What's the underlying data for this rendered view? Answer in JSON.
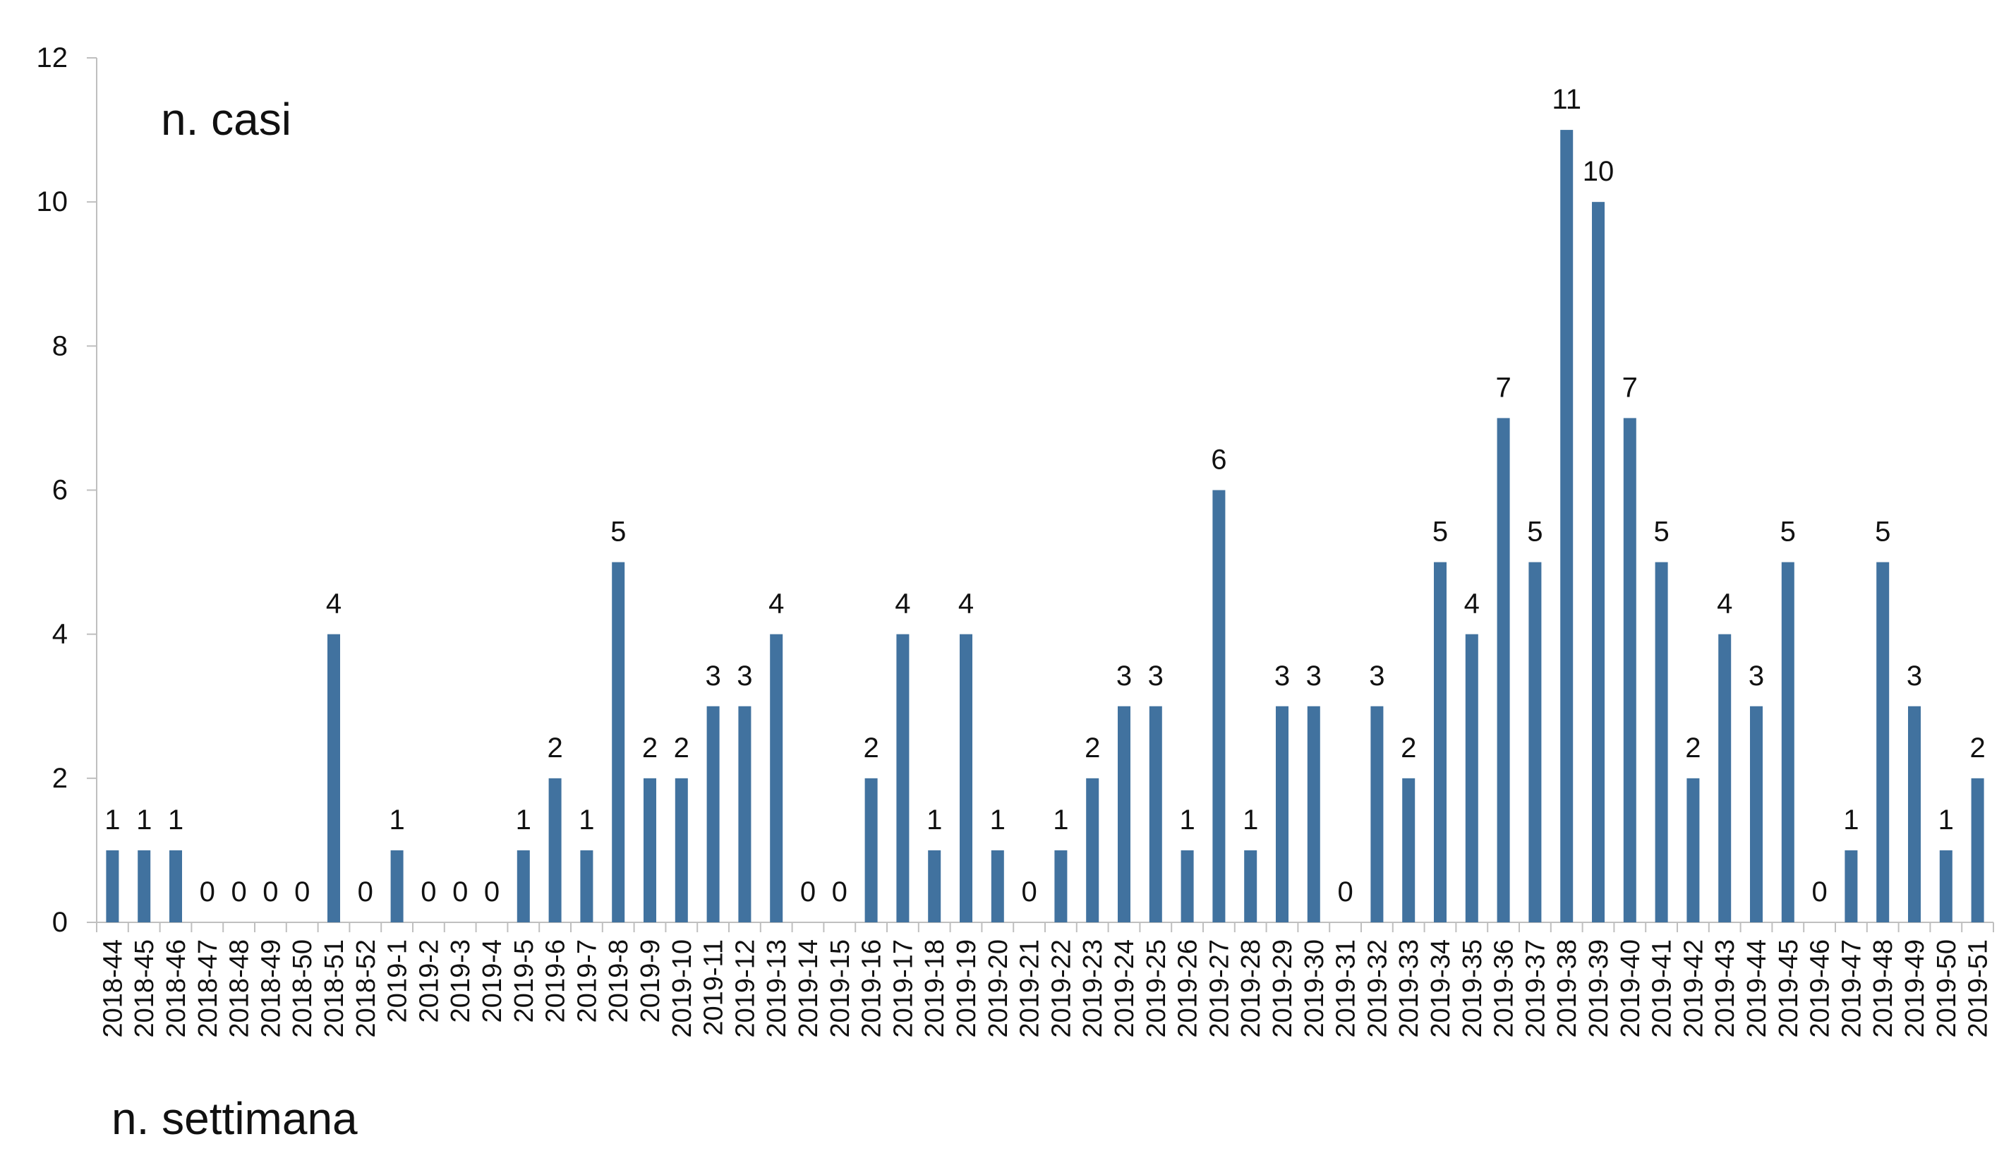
{
  "chart_data": {
    "type": "bar",
    "title": "",
    "ylabel": "n. casi",
    "xlabel": "n. settimana",
    "ylim": [
      0,
      12
    ],
    "yticks": [
      0,
      2,
      4,
      6,
      8,
      10,
      12
    ],
    "grid": false,
    "bar_color": "#41729f",
    "categories": [
      "2018-44",
      "2018-45",
      "2018-46",
      "2018-47",
      "2018-48",
      "2018-49",
      "2018-50",
      "2018-51",
      "2018-52",
      "2019-1",
      "2019-2",
      "2019-3",
      "2019-4",
      "2019-5",
      "2019-6",
      "2019-7",
      "2019-8",
      "2019-9",
      "2019-10",
      "2019-11",
      "2019-12",
      "2019-13",
      "2019-14",
      "2019-15",
      "2019-16",
      "2019-17",
      "2019-18",
      "2019-19",
      "2019-20",
      "2019-21",
      "2019-22",
      "2019-23",
      "2019-24",
      "2019-25",
      "2019-26",
      "2019-27",
      "2019-28",
      "2019-29",
      "2019-30",
      "2019-31",
      "2019-32",
      "2019-33",
      "2019-34",
      "2019-35",
      "2019-36",
      "2019-37",
      "2019-38",
      "2019-39",
      "2019-40",
      "2019-41",
      "2019-42",
      "2019-43",
      "2019-44",
      "2019-45",
      "2019-46",
      "2019-47",
      "2019-48",
      "2019-49",
      "2019-50",
      "2019-51"
    ],
    "values": [
      1,
      1,
      1,
      0,
      0,
      0,
      0,
      4,
      0,
      1,
      0,
      0,
      0,
      1,
      2,
      1,
      5,
      2,
      2,
      3,
      3,
      4,
      0,
      0,
      2,
      4,
      1,
      4,
      1,
      0,
      1,
      2,
      3,
      3,
      1,
      6,
      1,
      3,
      3,
      0,
      3,
      2,
      5,
      4,
      7,
      5,
      11,
      10,
      7,
      5,
      2,
      4,
      3,
      5,
      0,
      1,
      5,
      3,
      1,
      2
    ]
  }
}
